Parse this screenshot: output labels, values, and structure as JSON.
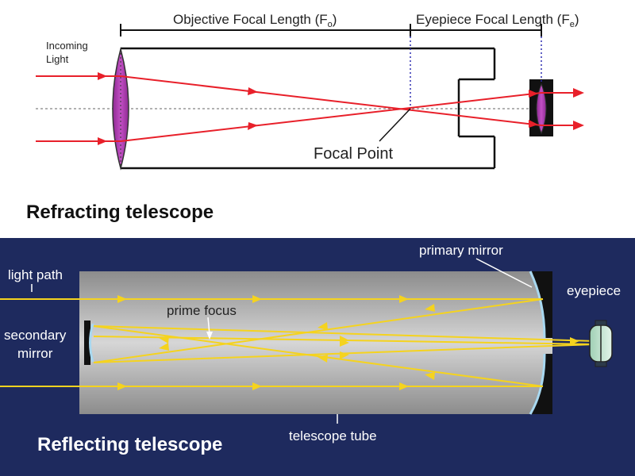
{
  "refracting": {
    "objective_focal_length": "Objective Focal Length (F",
    "objective_sub": "o",
    "eyepiece_focal_length": "Eyepiece Focal Length (F",
    "eyepiece_sub": "e",
    "close_paren": ")",
    "incoming_light_1": "Incoming",
    "incoming_light_2": "Light",
    "focal_point": "Focal Point",
    "heading": "Refracting telescope",
    "colors": {
      "ray": "#e8202a",
      "lens": "#b43cb4",
      "line": "#111111",
      "dotted": "#2a2ab0"
    }
  },
  "reflecting": {
    "light_path": "light path",
    "secondary_mirror_1": "secondary",
    "secondary_mirror_2": "mirror",
    "prime_focus": "prime focus",
    "primary_mirror": "primary mirror",
    "eyepiece": "eyepiece",
    "telescope_tube": "telescope tube",
    "heading": "Reflecting telescope",
    "colors": {
      "background": "#1e2a5e",
      "ray": "#f5d31e",
      "mirror": "#a8d8f0",
      "tube": "#9a9a9a"
    }
  }
}
